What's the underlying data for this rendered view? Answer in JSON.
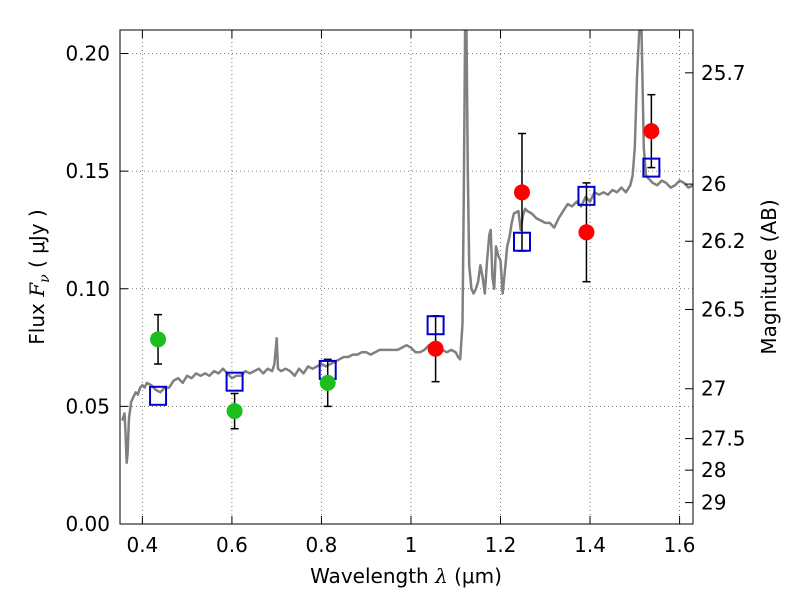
{
  "chart_data": {
    "type": "scatter",
    "xlabel_text": "Wavelength",
    "xlabel_symbol": "λ",
    "xlabel_unit": "(μm)",
    "ylabel_text": "Flux",
    "ylabel_symbol": "F",
    "ylabel_sub": "ν",
    "ylabel_unit": "( μJy )",
    "y2label": "Magnitude (AB)",
    "xlim": [
      0.35,
      1.63
    ],
    "ylim": [
      0.0,
      0.21
    ],
    "grid": true,
    "legend": "none",
    "x_ticks": [
      {
        "value": 0.4,
        "label": "0.4"
      },
      {
        "value": 0.6,
        "label": "0.6"
      },
      {
        "value": 0.8,
        "label": "0.8"
      },
      {
        "value": 1.0,
        "label": "1"
      },
      {
        "value": 1.2,
        "label": "1.2"
      },
      {
        "value": 1.4,
        "label": "1.4"
      },
      {
        "value": 1.6,
        "label": "1.6"
      }
    ],
    "y_ticks": [
      {
        "value": 0.0,
        "label": "0.00"
      },
      {
        "value": 0.05,
        "label": "0.05"
      },
      {
        "value": 0.1,
        "label": "0.10"
      },
      {
        "value": 0.15,
        "label": "0.15"
      },
      {
        "value": 0.2,
        "label": "0.20"
      }
    ],
    "mag_ticks": [
      {
        "flux": 0.1918,
        "label": "25.7"
      },
      {
        "flux": 0.1445,
        "label": "26"
      },
      {
        "flux": 0.1202,
        "label": "26.2"
      },
      {
        "flux": 0.0912,
        "label": "26.5"
      },
      {
        "flux": 0.0575,
        "label": "27"
      },
      {
        "flux": 0.0363,
        "label": "27.5"
      },
      {
        "flux": 0.0229,
        "label": "28"
      },
      {
        "flux": 0.0091,
        "label": "29"
      }
    ],
    "colors": {
      "model": "#808080",
      "blue_square": "#0000cc",
      "green": "#1cbf1c",
      "red": "#ff0000",
      "errorbar": "#000000",
      "grid": "#555555"
    },
    "series": [
      {
        "kind": "model-spectrum",
        "points": [
          [
            0.355,
            0.044
          ],
          [
            0.36,
            0.047
          ],
          [
            0.362,
            0.04
          ],
          [
            0.365,
            0.026
          ],
          [
            0.367,
            0.03
          ],
          [
            0.37,
            0.045
          ],
          [
            0.375,
            0.052
          ],
          [
            0.38,
            0.054
          ],
          [
            0.385,
            0.056
          ],
          [
            0.39,
            0.055
          ],
          [
            0.395,
            0.058
          ],
          [
            0.4,
            0.059
          ],
          [
            0.405,
            0.058
          ],
          [
            0.41,
            0.06
          ],
          [
            0.42,
            0.059
          ],
          [
            0.43,
            0.057
          ],
          [
            0.44,
            0.056
          ],
          [
            0.45,
            0.058
          ],
          [
            0.46,
            0.058
          ],
          [
            0.47,
            0.061
          ],
          [
            0.48,
            0.062
          ],
          [
            0.49,
            0.06
          ],
          [
            0.5,
            0.063
          ],
          [
            0.51,
            0.062
          ],
          [
            0.52,
            0.064
          ],
          [
            0.53,
            0.063
          ],
          [
            0.54,
            0.064
          ],
          [
            0.55,
            0.063
          ],
          [
            0.56,
            0.065
          ],
          [
            0.57,
            0.064
          ],
          [
            0.58,
            0.066
          ],
          [
            0.59,
            0.064
          ],
          [
            0.6,
            0.062
          ],
          [
            0.61,
            0.063
          ],
          [
            0.62,
            0.063
          ],
          [
            0.63,
            0.065
          ],
          [
            0.64,
            0.064
          ],
          [
            0.65,
            0.065
          ],
          [
            0.66,
            0.066
          ],
          [
            0.67,
            0.064
          ],
          [
            0.68,
            0.066
          ],
          [
            0.69,
            0.065
          ],
          [
            0.695,
            0.068
          ],
          [
            0.7,
            0.079
          ],
          [
            0.703,
            0.066
          ],
          [
            0.71,
            0.065
          ],
          [
            0.72,
            0.066
          ],
          [
            0.73,
            0.065
          ],
          [
            0.74,
            0.063
          ],
          [
            0.75,
            0.066
          ],
          [
            0.76,
            0.064
          ],
          [
            0.77,
            0.067
          ],
          [
            0.78,
            0.066
          ],
          [
            0.79,
            0.067
          ],
          [
            0.8,
            0.068
          ],
          [
            0.81,
            0.067
          ],
          [
            0.82,
            0.068
          ],
          [
            0.83,
            0.069
          ],
          [
            0.84,
            0.07
          ],
          [
            0.85,
            0.071
          ],
          [
            0.86,
            0.071
          ],
          [
            0.87,
            0.072
          ],
          [
            0.88,
            0.072
          ],
          [
            0.89,
            0.073
          ],
          [
            0.9,
            0.073
          ],
          [
            0.91,
            0.072
          ],
          [
            0.92,
            0.073
          ],
          [
            0.93,
            0.074
          ],
          [
            0.94,
            0.074
          ],
          [
            0.95,
            0.074
          ],
          [
            0.96,
            0.074
          ],
          [
            0.97,
            0.074
          ],
          [
            0.98,
            0.075
          ],
          [
            0.99,
            0.076
          ],
          [
            1.0,
            0.075
          ],
          [
            1.01,
            0.073
          ],
          [
            1.02,
            0.073
          ],
          [
            1.03,
            0.074
          ],
          [
            1.04,
            0.076
          ],
          [
            1.05,
            0.075
          ],
          [
            1.06,
            0.072
          ],
          [
            1.07,
            0.074
          ],
          [
            1.08,
            0.073
          ],
          [
            1.09,
            0.074
          ],
          [
            1.1,
            0.073
          ],
          [
            1.105,
            0.071
          ],
          [
            1.11,
            0.07
          ],
          [
            1.115,
            0.085
          ],
          [
            1.118,
            0.14
          ],
          [
            1.121,
            0.21
          ],
          [
            1.124,
            0.21
          ],
          [
            1.127,
            0.15
          ],
          [
            1.13,
            0.11
          ],
          [
            1.135,
            0.1
          ],
          [
            1.14,
            0.098
          ],
          [
            1.145,
            0.1
          ],
          [
            1.15,
            0.103
          ],
          [
            1.155,
            0.11
          ],
          [
            1.16,
            0.105
          ],
          [
            1.165,
            0.098
          ],
          [
            1.17,
            0.112
          ],
          [
            1.175,
            0.123
          ],
          [
            1.178,
            0.125
          ],
          [
            1.182,
            0.105
          ],
          [
            1.186,
            0.1
          ],
          [
            1.19,
            0.118
          ],
          [
            1.195,
            0.114
          ],
          [
            1.2,
            0.112
          ],
          [
            1.205,
            0.098
          ],
          [
            1.21,
            0.108
          ],
          [
            1.215,
            0.118
          ],
          [
            1.22,
            0.122
          ],
          [
            1.225,
            0.128
          ],
          [
            1.23,
            0.132
          ],
          [
            1.24,
            0.133
          ],
          [
            1.245,
            0.125
          ],
          [
            1.25,
            0.131
          ],
          [
            1.255,
            0.134
          ],
          [
            1.26,
            0.133
          ],
          [
            1.27,
            0.132
          ],
          [
            1.28,
            0.13
          ],
          [
            1.29,
            0.129
          ],
          [
            1.3,
            0.128
          ],
          [
            1.31,
            0.128
          ],
          [
            1.32,
            0.126
          ],
          [
            1.33,
            0.13
          ],
          [
            1.34,
            0.133
          ],
          [
            1.35,
            0.136
          ],
          [
            1.36,
            0.135
          ],
          [
            1.37,
            0.137
          ],
          [
            1.38,
            0.135
          ],
          [
            1.39,
            0.139
          ],
          [
            1.4,
            0.137
          ],
          [
            1.41,
            0.141
          ],
          [
            1.42,
            0.14
          ],
          [
            1.43,
            0.141
          ],
          [
            1.44,
            0.14
          ],
          [
            1.45,
            0.142
          ],
          [
            1.46,
            0.141
          ],
          [
            1.47,
            0.143
          ],
          [
            1.48,
            0.141
          ],
          [
            1.49,
            0.144
          ],
          [
            1.495,
            0.148
          ],
          [
            1.5,
            0.16
          ],
          [
            1.505,
            0.19
          ],
          [
            1.51,
            0.21
          ],
          [
            1.515,
            0.21
          ],
          [
            1.52,
            0.16
          ],
          [
            1.525,
            0.148
          ],
          [
            1.53,
            0.147
          ],
          [
            1.54,
            0.145
          ],
          [
            1.55,
            0.144
          ],
          [
            1.56,
            0.146
          ],
          [
            1.57,
            0.145
          ],
          [
            1.58,
            0.143
          ],
          [
            1.59,
            0.144
          ],
          [
            1.6,
            0.146
          ],
          [
            1.61,
            0.145
          ],
          [
            1.62,
            0.143
          ],
          [
            1.63,
            0.144
          ]
        ]
      },
      {
        "kind": "model-photometry",
        "marker": "open-square",
        "points": [
          {
            "x": 0.435,
            "y": 0.0545
          },
          {
            "x": 0.606,
            "y": 0.0605
          },
          {
            "x": 0.814,
            "y": 0.0655
          },
          {
            "x": 1.055,
            "y": 0.0845
          },
          {
            "x": 1.248,
            "y": 0.12
          },
          {
            "x": 1.392,
            "y": 0.1395
          },
          {
            "x": 1.537,
            "y": 0.1515
          }
        ]
      },
      {
        "kind": "observed-optical",
        "marker": "filled-circle",
        "color": "green",
        "points": [
          {
            "x": 0.435,
            "y": 0.0785,
            "err": 0.0105
          },
          {
            "x": 0.606,
            "y": 0.048,
            "err": 0.0075
          },
          {
            "x": 0.814,
            "y": 0.06,
            "err": 0.01
          }
        ]
      },
      {
        "kind": "observed-nir",
        "marker": "filled-circle",
        "color": "red",
        "points": [
          {
            "x": 1.055,
            "y": 0.0745,
            "err": 0.014
          },
          {
            "x": 1.248,
            "y": 0.141,
            "err": 0.025
          },
          {
            "x": 1.392,
            "y": 0.124,
            "err": 0.021
          },
          {
            "x": 1.537,
            "y": 0.167,
            "err": 0.0155
          }
        ]
      }
    ]
  }
}
